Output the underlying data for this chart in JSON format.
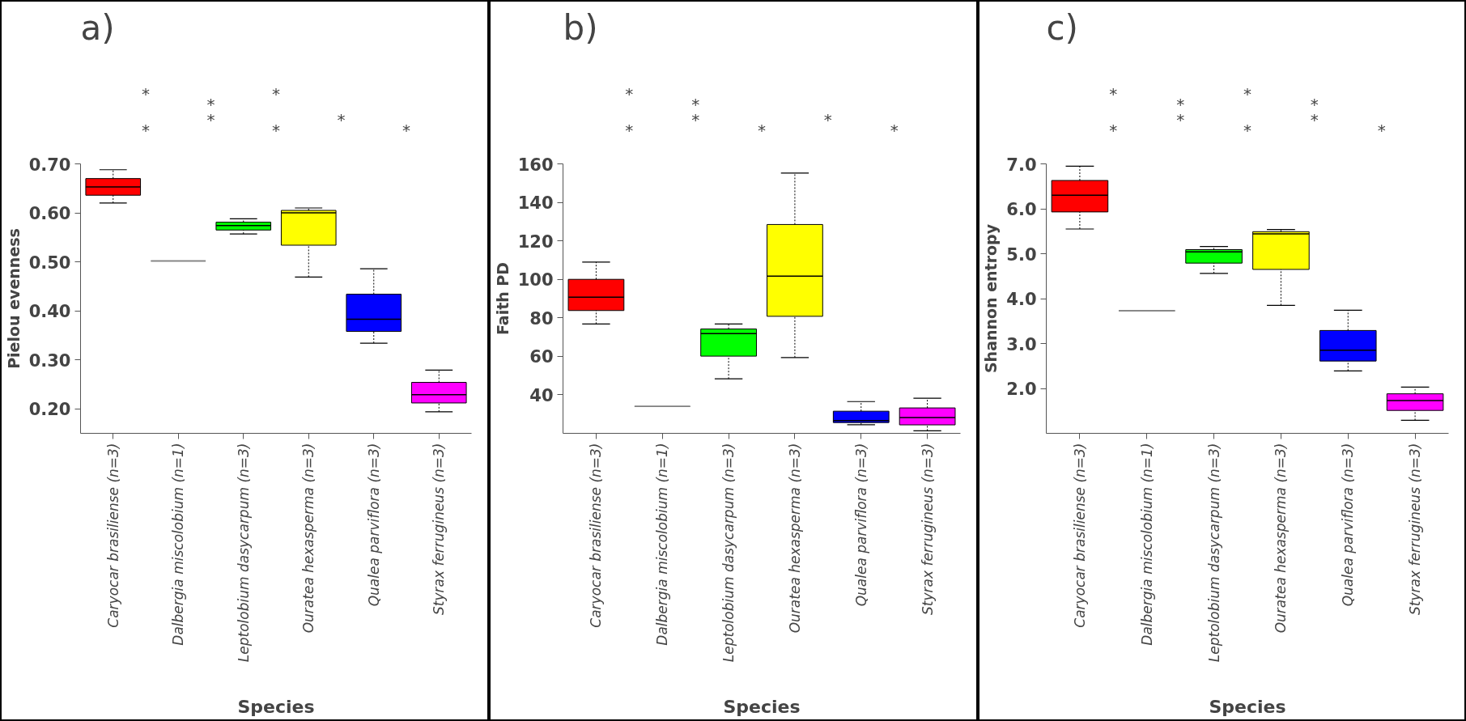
{
  "chart_data": [
    {
      "type": "box",
      "title": "a)",
      "xlabel": "Species",
      "ylabel": "Pielou evenness",
      "categories": [
        "Caryocar brasiliense (n=3)",
        "Dalbergia miscolobium (n=1)",
        "Leptolobium dasycarpum (n=3)",
        "Ouratea hexasperma (n=3)",
        "Qualea parviflora (n=3)",
        "Styrax ferrugineus (n=3)"
      ],
      "colors": [
        "#ff0000",
        "#808080",
        "#00ff00",
        "#ffff00",
        "#0000ff",
        "#ff00ff"
      ],
      "boxes": [
        {
          "low": 0.62,
          "q1": 0.636,
          "median": 0.653,
          "q3": 0.67,
          "high": 0.688
        },
        {
          "low": 0.502,
          "q1": 0.502,
          "median": 0.502,
          "q3": 0.502,
          "high": 0.502
        },
        {
          "low": 0.557,
          "q1": 0.565,
          "median": 0.574,
          "q3": 0.581,
          "high": 0.588
        },
        {
          "low": 0.469,
          "q1": 0.534,
          "median": 0.6,
          "q3": 0.605,
          "high": 0.61
        },
        {
          "low": 0.334,
          "q1": 0.358,
          "median": 0.383,
          "q3": 0.434,
          "high": 0.486
        },
        {
          "low": 0.194,
          "q1": 0.212,
          "median": 0.229,
          "q3": 0.254,
          "high": 0.279
        }
      ],
      "ylim": [
        0.15,
        0.7
      ],
      "yticks": [
        {
          "value": 0.2,
          "label": "0.20"
        },
        {
          "value": 0.3,
          "label": "0.30"
        },
        {
          "value": 0.4,
          "label": "0.40"
        },
        {
          "value": 0.5,
          "label": "0.50"
        },
        {
          "value": 0.6,
          "label": "0.60"
        },
        {
          "value": 0.7,
          "label": "0.70"
        }
      ],
      "grid": false,
      "annotations": [
        "*",
        "*",
        "*",
        "*",
        "*",
        "*",
        "*",
        "*"
      ]
    },
    {
      "type": "box",
      "title": "b)",
      "xlabel": "Species",
      "ylabel": "Faith PD",
      "categories": [
        "Caryocar brasiliense (n=3)",
        "Dalbergia miscolobium (n=1)",
        "Leptolobium dasycarpum (n=3)",
        "Ouratea hexasperma (n=3)",
        "Qualea parviflora (n=3)",
        "Styrax ferrugineus (n=3)"
      ],
      "colors": [
        "#ff0000",
        "#808080",
        "#00ff00",
        "#ffff00",
        "#0000ff",
        "#ff00ff"
      ],
      "boxes": [
        {
          "low": 76.8,
          "q1": 83.8,
          "median": 90.7,
          "q3": 100.0,
          "high": 109.0
        },
        {
          "low": 34.0,
          "q1": 34.0,
          "median": 34.0,
          "q3": 34.0,
          "high": 34.0
        },
        {
          "low": 48.3,
          "q1": 60.1,
          "median": 71.8,
          "q3": 74.2,
          "high": 76.8
        },
        {
          "low": 59.4,
          "q1": 80.8,
          "median": 101.7,
          "q3": 128.5,
          "high": 155.2
        },
        {
          "low": 24.5,
          "q1": 25.6,
          "median": 26.6,
          "q3": 31.5,
          "high": 36.5
        },
        {
          "low": 21.3,
          "q1": 24.4,
          "median": 28.2,
          "q3": 33.2,
          "high": 38.2
        }
      ],
      "ylim": [
        20,
        160
      ],
      "yticks": [
        40,
        60,
        80,
        100,
        120,
        140,
        160
      ],
      "grid": false,
      "annotations": [
        "*",
        "*",
        "*",
        "*",
        "*",
        "*",
        "*"
      ]
    },
    {
      "type": "box",
      "title": "c)",
      "xlabel": "Species",
      "ylabel": "Shannon entropy",
      "categories": [
        "Caryocar brasiliense (n=3)",
        "Dalbergia miscolobium (n=1)",
        "Leptolobium dasycarpum (n=3)",
        "Ouratea hexasperma (n=3)",
        "Qualea parviflora (n=3)",
        "Styrax ferrugineus (n=3)"
      ],
      "colors": [
        "#ff0000",
        "#808080",
        "#00ff00",
        "#ffff00",
        "#0000ff",
        "#ff00ff"
      ],
      "boxes": [
        {
          "low": 5.55,
          "q1": 5.93,
          "median": 6.3,
          "q3": 6.63,
          "high": 6.95
        },
        {
          "low": 3.73,
          "q1": 3.73,
          "median": 3.73,
          "q3": 3.73,
          "high": 3.73
        },
        {
          "low": 4.56,
          "q1": 4.79,
          "median": 5.04,
          "q3": 5.09,
          "high": 5.16
        },
        {
          "low": 3.85,
          "q1": 4.65,
          "median": 5.44,
          "q3": 5.49,
          "high": 5.54
        },
        {
          "low": 2.39,
          "q1": 2.61,
          "median": 2.85,
          "q3": 3.29,
          "high": 3.74
        },
        {
          "low": 1.29,
          "q1": 1.51,
          "median": 1.73,
          "q3": 1.88,
          "high": 2.03
        }
      ],
      "ylim": [
        1.0,
        7.0
      ],
      "yticks": [
        {
          "value": 2,
          "label": "2.0"
        },
        {
          "value": 3,
          "label": "3.0"
        },
        {
          "value": 4,
          "label": "4.0"
        },
        {
          "value": 5,
          "label": "5.0"
        },
        {
          "value": 6,
          "label": "6.0"
        },
        {
          "value": 7,
          "label": "7.0"
        }
      ],
      "grid": false,
      "annotations": [
        "*",
        "*",
        "*",
        "*",
        "*",
        "*",
        "*",
        "*",
        "*"
      ]
    }
  ]
}
